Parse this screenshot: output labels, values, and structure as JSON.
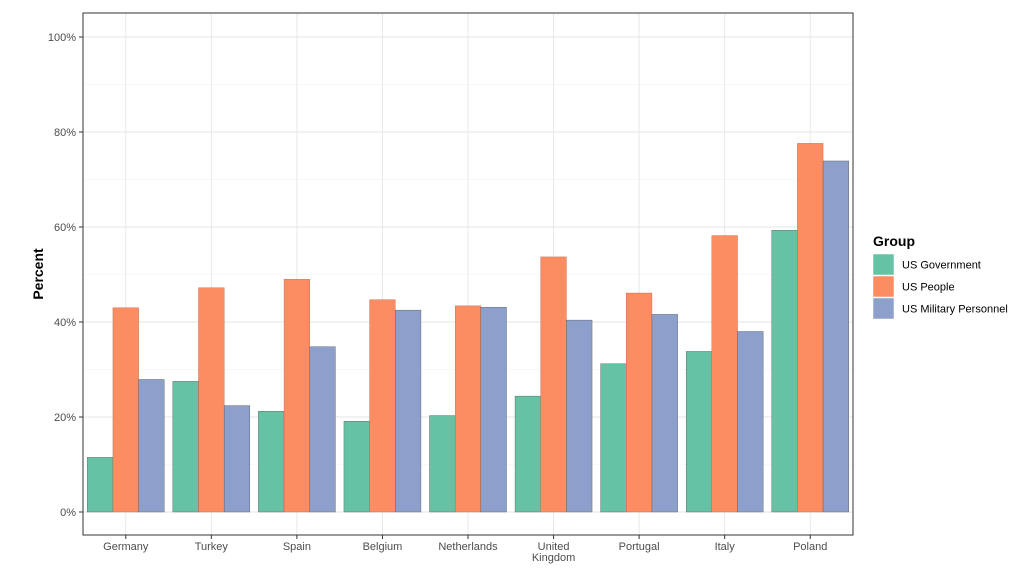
{
  "chart_data": {
    "type": "bar",
    "title": "",
    "xlabel": "",
    "ylabel": "Percent",
    "ylim": [
      0,
      100
    ],
    "y_tick_values": [
      0,
      20,
      40,
      60,
      80,
      100
    ],
    "y_tick_labels": [
      "0%",
      "20%",
      "40%",
      "60%",
      "80%",
      "100%"
    ],
    "grid": true,
    "legend_position": "right",
    "legend_title": "Group",
    "categories": [
      [
        "Germany"
      ],
      [
        "Turkey"
      ],
      [
        "Spain"
      ],
      [
        "Belgium"
      ],
      [
        "Netherlands"
      ],
      [
        "United",
        "Kingdom"
      ],
      [
        "Portugal"
      ],
      [
        "Italy"
      ],
      [
        "Poland"
      ]
    ],
    "series": [
      {
        "name": "US Government",
        "color": "#66c2a5",
        "values": [
          11.5,
          27.5,
          21.2,
          19.1,
          20.3,
          24.4,
          31.2,
          33.8,
          59.3
        ]
      },
      {
        "name": "US People",
        "color": "#fc8d62",
        "values": [
          43.0,
          47.2,
          49.0,
          44.7,
          43.4,
          53.7,
          46.1,
          58.2,
          77.6
        ]
      },
      {
        "name": "US Military Personnel",
        "color": "#8da0cb",
        "values": [
          27.9,
          22.4,
          34.8,
          42.5,
          43.1,
          40.4,
          41.6,
          38.0,
          73.9
        ]
      }
    ]
  }
}
